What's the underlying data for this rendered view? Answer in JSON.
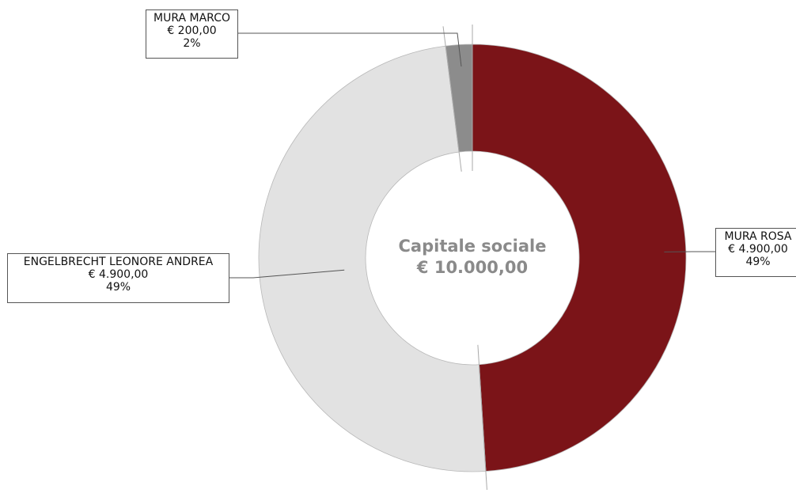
{
  "chart_data": {
    "type": "pie",
    "variant": "donut",
    "center_title": "Capitale sociale",
    "center_value": "€ 10.000,00",
    "slices": [
      {
        "name": "MURA ROSA",
        "value": 4900,
        "value_label": "€ 4.900,00",
        "percent_label": "49%",
        "color": "#7b1418"
      },
      {
        "name": "ENGELBRECHT LEONORE ANDREA",
        "value": 4900,
        "value_label": "€ 4.900,00",
        "percent_label": "49%",
        "color": "#e2e2e2"
      },
      {
        "name": "MURA MARCO",
        "value": 200,
        "value_label": "€ 200,00",
        "percent_label": "2%",
        "color": "#8c8c8c"
      }
    ],
    "legend": "none"
  }
}
